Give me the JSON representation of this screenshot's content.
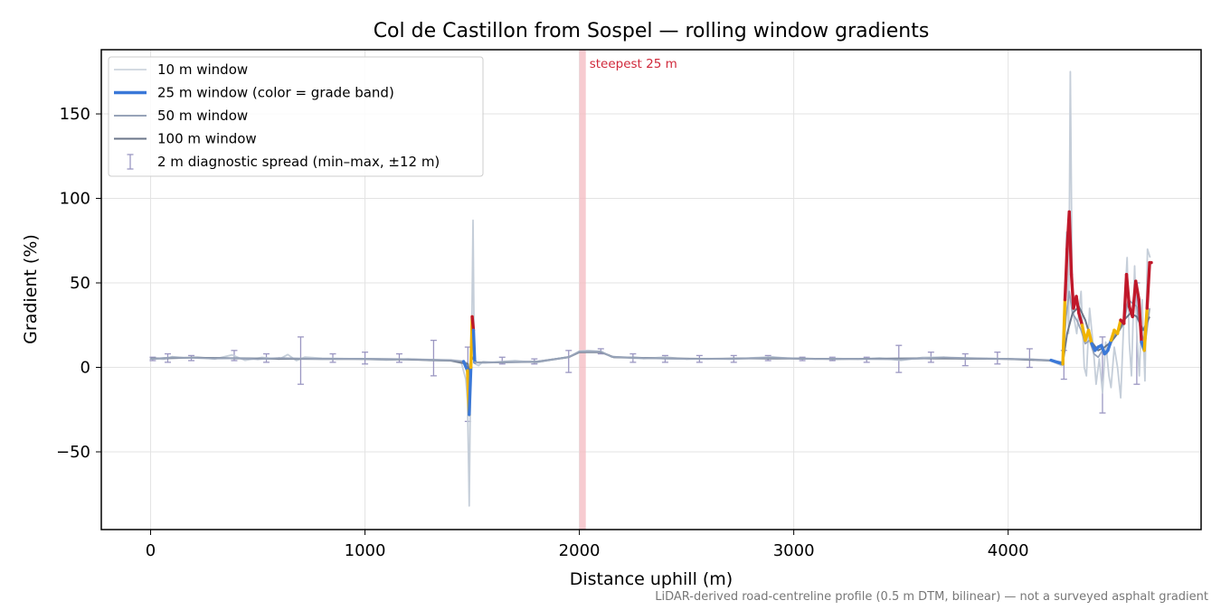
{
  "chart_data": {
    "type": "line",
    "title": "Col de Castillon from Sospel — rolling window gradients",
    "xlabel": "Distance uphill (m)",
    "ylabel": "Gradient (%)",
    "xlim": [
      -230,
      4900
    ],
    "ylim": [
      -96,
      188
    ],
    "x_ticks": [
      0,
      1000,
      2000,
      3000,
      4000
    ],
    "x_tick_labels": [
      "0",
      "1000",
      "2000",
      "3000",
      "4000"
    ],
    "y_ticks": [
      -50,
      0,
      50,
      100,
      150
    ],
    "y_tick_labels": [
      "−50",
      "0",
      "50",
      "100",
      "150"
    ],
    "grid": true,
    "legend_position": "top-left",
    "legend": [
      {
        "label": "10 m window",
        "style": "thin-line",
        "color": "#c5ced9"
      },
      {
        "label": "25 m window (color = grade band)",
        "style": "thick-line",
        "color": "#3a78d8"
      },
      {
        "label": "50 m window",
        "style": "line",
        "color": "#97a3b8"
      },
      {
        "label": "100 m window",
        "style": "line",
        "color": "#6b7689"
      },
      {
        "label": "2 m diagnostic spread (min–max, ±12 m)",
        "style": "errorbar",
        "color": "#9b97c2"
      }
    ],
    "highlight": {
      "x_start": 2000,
      "x_end": 2030,
      "label": "steepest 25 m",
      "color": "#f4b9c0",
      "label_color": "#d0283a"
    },
    "footnote": "LiDAR-derived road-centreline profile (0.5 m DTM, bilinear) — not a surveyed asphalt gradient",
    "grade_band_colors": {
      "low": "#3a78d8",
      "mid": "#f0b400",
      "high": "#c0182a"
    },
    "series": [
      {
        "name": "10 m window",
        "color": "#c5ced9",
        "points": [
          [
            0,
            5.2
          ],
          [
            60,
            4.8
          ],
          [
            100,
            6.3
          ],
          [
            160,
            5.6
          ],
          [
            220,
            6.0
          ],
          [
            300,
            4.9
          ],
          [
            380,
            7.4
          ],
          [
            440,
            4.2
          ],
          [
            520,
            5.9
          ],
          [
            600,
            4.8
          ],
          [
            640,
            7.6
          ],
          [
            680,
            4.0
          ],
          [
            720,
            6.1
          ],
          [
            800,
            5.4
          ],
          [
            900,
            5.2
          ],
          [
            1000,
            4.9
          ],
          [
            1100,
            4.3
          ],
          [
            1200,
            5.0
          ],
          [
            1300,
            4.1
          ],
          [
            1400,
            3.9
          ],
          [
            1450,
            2.5
          ],
          [
            1470,
            -7
          ],
          [
            1478,
            -20
          ],
          [
            1486,
            -82
          ],
          [
            1492,
            -10
          ],
          [
            1498,
            20
          ],
          [
            1504,
            87
          ],
          [
            1510,
            6
          ],
          [
            1516,
            2
          ],
          [
            1530,
            1
          ],
          [
            1550,
            3.4
          ],
          [
            1600,
            3.0
          ],
          [
            1700,
            4.0
          ],
          [
            1800,
            2.9
          ],
          [
            1900,
            5.0
          ],
          [
            1950,
            6.0
          ],
          [
            2000,
            9.6
          ],
          [
            2040,
            10.0
          ],
          [
            2100,
            9.4
          ],
          [
            2150,
            6.5
          ],
          [
            2200,
            5.8
          ],
          [
            2300,
            5.2
          ],
          [
            2400,
            6.1
          ],
          [
            2500,
            4.9
          ],
          [
            2600,
            5.2
          ],
          [
            2700,
            4.8
          ],
          [
            2800,
            5.6
          ],
          [
            2900,
            6.2
          ],
          [
            3000,
            5.1
          ],
          [
            3100,
            4.9
          ],
          [
            3200,
            5.3
          ],
          [
            3300,
            4.8
          ],
          [
            3400,
            5.6
          ],
          [
            3500,
            4.1
          ],
          [
            3600,
            5.9
          ],
          [
            3700,
            6.0
          ],
          [
            3800,
            4.9
          ],
          [
            3900,
            5.3
          ],
          [
            4000,
            5.1
          ],
          [
            4100,
            4.7
          ],
          [
            4200,
            3.8
          ],
          [
            4250,
            1.0
          ],
          [
            4262,
            12
          ],
          [
            4272,
            80
          ],
          [
            4282,
            20
          ],
          [
            4290,
            175
          ],
          [
            4298,
            60
          ],
          [
            4306,
            30
          ],
          [
            4320,
            20
          ],
          [
            4340,
            45
          ],
          [
            4355,
            0
          ],
          [
            4365,
            -5
          ],
          [
            4380,
            35
          ],
          [
            4395,
            15
          ],
          [
            4410,
            -10
          ],
          [
            4425,
            5
          ],
          [
            4440,
            -15
          ],
          [
            4455,
            15
          ],
          [
            4470,
            -5
          ],
          [
            4480,
            -12
          ],
          [
            4495,
            12
          ],
          [
            4510,
            0
          ],
          [
            4525,
            -18
          ],
          [
            4540,
            30
          ],
          [
            4555,
            65
          ],
          [
            4565,
            15
          ],
          [
            4575,
            -5
          ],
          [
            4590,
            60
          ],
          [
            4600,
            20
          ],
          [
            4612,
            -5
          ],
          [
            4625,
            40
          ],
          [
            4638,
            -8
          ],
          [
            4650,
            70
          ],
          [
            4662,
            65
          ]
        ]
      },
      {
        "name": "25 m window",
        "color": "#3a78d8",
        "points": [
          [
            0,
            5.0
          ],
          [
            100,
            5.8
          ],
          [
            200,
            5.6
          ],
          [
            300,
            5.3
          ],
          [
            400,
            5.4
          ],
          [
            500,
            4.9
          ],
          [
            600,
            5.5
          ],
          [
            700,
            5.2
          ],
          [
            800,
            5.0
          ],
          [
            1000,
            5.1
          ],
          [
            1200,
            4.8
          ],
          [
            1400,
            4.3
          ],
          [
            1460,
            3.5
          ],
          [
            1478,
            -2
          ],
          [
            1486,
            -28
          ],
          [
            1494,
            0
          ],
          [
            1500,
            30
          ],
          [
            1506,
            22
          ],
          [
            1512,
            3
          ],
          [
            1530,
            2.8
          ],
          [
            1600,
            3.0
          ],
          [
            1800,
            3.4
          ],
          [
            1950,
            6.0
          ],
          [
            2000,
            9.3
          ],
          [
            2100,
            9.3
          ],
          [
            2150,
            6.3
          ],
          [
            2300,
            5.5
          ],
          [
            2500,
            5.0
          ],
          [
            2700,
            5.1
          ],
          [
            2900,
            5.7
          ],
          [
            3100,
            5.0
          ],
          [
            3300,
            5.0
          ],
          [
            3500,
            4.8
          ],
          [
            3700,
            5.8
          ],
          [
            3900,
            5.2
          ],
          [
            4100,
            4.8
          ],
          [
            4200,
            4.2
          ],
          [
            4255,
            2
          ],
          [
            4265,
            40
          ],
          [
            4275,
            70
          ],
          [
            4285,
            92
          ],
          [
            4295,
            55
          ],
          [
            4305,
            35
          ],
          [
            4318,
            42
          ],
          [
            4330,
            32
          ],
          [
            4345,
            25
          ],
          [
            4360,
            16
          ],
          [
            4375,
            22
          ],
          [
            4390,
            14
          ],
          [
            4405,
            10
          ],
          [
            4420,
            12
          ],
          [
            4435,
            13
          ],
          [
            4450,
            8
          ],
          [
            4465,
            10
          ],
          [
            4480,
            16
          ],
          [
            4495,
            22
          ],
          [
            4510,
            20
          ],
          [
            4525,
            28
          ],
          [
            4540,
            26
          ],
          [
            4552,
            55
          ],
          [
            4565,
            36
          ],
          [
            4580,
            30
          ],
          [
            4595,
            51
          ],
          [
            4610,
            40
          ],
          [
            4622,
            15
          ],
          [
            4635,
            10
          ],
          [
            4648,
            35
          ],
          [
            4660,
            62
          ],
          [
            4668,
            62
          ]
        ]
      },
      {
        "name": "50 m window",
        "color": "#97a3b8",
        "points": [
          [
            0,
            5.3
          ],
          [
            200,
            5.7
          ],
          [
            400,
            5.5
          ],
          [
            600,
            5.0
          ],
          [
            800,
            5.1
          ],
          [
            1000,
            5.0
          ],
          [
            1200,
            4.8
          ],
          [
            1400,
            4.2
          ],
          [
            1480,
            2.5
          ],
          [
            1488,
            -8
          ],
          [
            1496,
            8
          ],
          [
            1504,
            14
          ],
          [
            1515,
            3
          ],
          [
            1540,
            2.8
          ],
          [
            1800,
            3.2
          ],
          [
            1950,
            6.2
          ],
          [
            2000,
            9.0
          ],
          [
            2100,
            9.2
          ],
          [
            2160,
            6.0
          ],
          [
            2400,
            5.4
          ],
          [
            2600,
            5.0
          ],
          [
            2800,
            5.4
          ],
          [
            3000,
            5.3
          ],
          [
            3200,
            5.0
          ],
          [
            3400,
            5.2
          ],
          [
            3600,
            5.4
          ],
          [
            3800,
            5.3
          ],
          [
            4000,
            5.0
          ],
          [
            4200,
            4.2
          ],
          [
            4255,
            3
          ],
          [
            4270,
            30
          ],
          [
            4285,
            45
          ],
          [
            4300,
            32
          ],
          [
            4320,
            28
          ],
          [
            4340,
            22
          ],
          [
            4360,
            14
          ],
          [
            4380,
            16
          ],
          [
            4400,
            8
          ],
          [
            4420,
            6
          ],
          [
            4440,
            10
          ],
          [
            4460,
            8
          ],
          [
            4480,
            14
          ],
          [
            4500,
            20
          ],
          [
            4520,
            22
          ],
          [
            4540,
            26
          ],
          [
            4560,
            40
          ],
          [
            4580,
            38
          ],
          [
            4600,
            36
          ],
          [
            4620,
            20
          ],
          [
            4640,
            15
          ],
          [
            4660,
            35
          ]
        ]
      },
      {
        "name": "100 m window",
        "color": "#6b7689",
        "points": [
          [
            0,
            5.2
          ],
          [
            200,
            5.8
          ],
          [
            400,
            5.3
          ],
          [
            600,
            5.1
          ],
          [
            800,
            5.0
          ],
          [
            1000,
            4.9
          ],
          [
            1200,
            4.6
          ],
          [
            1400,
            4.0
          ],
          [
            1480,
            2.0
          ],
          [
            1488,
            -4
          ],
          [
            1500,
            6
          ],
          [
            1520,
            3
          ],
          [
            1560,
            2.9
          ],
          [
            1800,
            3.3
          ],
          [
            1950,
            6.0
          ],
          [
            2000,
            9.0
          ],
          [
            2100,
            9.0
          ],
          [
            2160,
            6.0
          ],
          [
            2400,
            5.3
          ],
          [
            2600,
            5.1
          ],
          [
            2800,
            5.3
          ],
          [
            3000,
            5.2
          ],
          [
            3200,
            5.0
          ],
          [
            3400,
            5.1
          ],
          [
            3600,
            5.3
          ],
          [
            3800,
            5.2
          ],
          [
            4000,
            5.0
          ],
          [
            4200,
            4.0
          ],
          [
            4255,
            2.5
          ],
          [
            4275,
            20
          ],
          [
            4300,
            32
          ],
          [
            4330,
            36
          ],
          [
            4360,
            28
          ],
          [
            4390,
            15
          ],
          [
            4420,
            10
          ],
          [
            4450,
            12
          ],
          [
            4480,
            15
          ],
          [
            4510,
            20
          ],
          [
            4540,
            28
          ],
          [
            4570,
            32
          ],
          [
            4600,
            30
          ],
          [
            4630,
            22
          ],
          [
            4660,
            30
          ]
        ]
      }
    ],
    "error_bars": [
      {
        "x": 10,
        "min": 4,
        "max": 6
      },
      {
        "x": 80,
        "min": 3,
        "max": 8
      },
      {
        "x": 190,
        "min": 4,
        "max": 7
      },
      {
        "x": 390,
        "min": 4,
        "max": 10
      },
      {
        "x": 540,
        "min": 3,
        "max": 8
      },
      {
        "x": 700,
        "min": -10,
        "max": 18
      },
      {
        "x": 850,
        "min": 3,
        "max": 8
      },
      {
        "x": 1000,
        "min": 2,
        "max": 9
      },
      {
        "x": 1160,
        "min": 3,
        "max": 8
      },
      {
        "x": 1320,
        "min": -5,
        "max": 16
      },
      {
        "x": 1480,
        "min": -32,
        "max": 12
      },
      {
        "x": 1640,
        "min": 2,
        "max": 6
      },
      {
        "x": 1790,
        "min": 2,
        "max": 5
      },
      {
        "x": 1950,
        "min": -3,
        "max": 10
      },
      {
        "x": 2100,
        "min": 8,
        "max": 11
      },
      {
        "x": 2250,
        "min": 3,
        "max": 8
      },
      {
        "x": 2400,
        "min": 3,
        "max": 7
      },
      {
        "x": 2560,
        "min": 3,
        "max": 7
      },
      {
        "x": 2720,
        "min": 3,
        "max": 7
      },
      {
        "x": 2880,
        "min": 4,
        "max": 7
      },
      {
        "x": 3040,
        "min": 4,
        "max": 6
      },
      {
        "x": 3180,
        "min": 4,
        "max": 6
      },
      {
        "x": 3340,
        "min": 3,
        "max": 6
      },
      {
        "x": 3490,
        "min": -3,
        "max": 13
      },
      {
        "x": 3640,
        "min": 3,
        "max": 9
      },
      {
        "x": 3800,
        "min": 1,
        "max": 8
      },
      {
        "x": 3950,
        "min": 2,
        "max": 9
      },
      {
        "x": 4100,
        "min": 0,
        "max": 11
      },
      {
        "x": 4260,
        "min": -7,
        "max": 10
      },
      {
        "x": 4440,
        "min": -27,
        "max": 18
      },
      {
        "x": 4600,
        "min": -10,
        "max": 50
      }
    ]
  }
}
